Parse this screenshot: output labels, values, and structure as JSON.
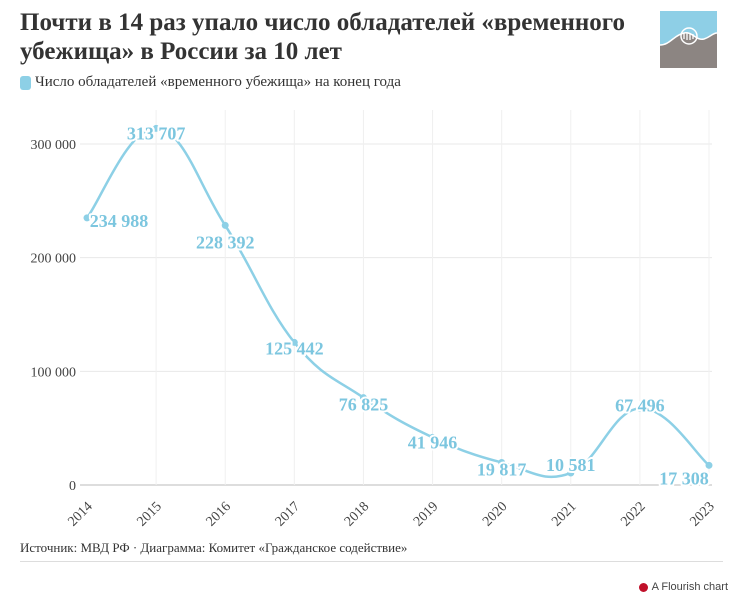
{
  "title": "Почти в 14 раз упало число обладателей «временного убежища» в России за 10 лет",
  "legend_label": "Число обладателей «временного убежища» на конец года",
  "source": "Источник: МВД РФ · Диаграмма: Комитет «Гражданское содействие»",
  "flourish_label": "A Flourish chart",
  "colors": {
    "series": "#8dd0e6",
    "label": "#7cc6df",
    "logo_top": "#8ecfe6",
    "logo_bottom": "#8c8582"
  },
  "chart_data": {
    "type": "line",
    "categories": [
      "2014",
      "2015",
      "2016",
      "2017",
      "2018",
      "2019",
      "2020",
      "2021",
      "2022",
      "2023"
    ],
    "series": [
      {
        "name": "Число обладателей «временного убежища» на конец года",
        "values": [
          234988,
          313707,
          228392,
          125442,
          76825,
          41946,
          19817,
          10581,
          67496,
          17308
        ]
      }
    ],
    "data_labels": [
      "234 988",
      "313 707",
      "228 392",
      "125 442",
      "76 825",
      "41 946",
      "19 817",
      "10 581",
      "67 496",
      "17 308"
    ],
    "y_ticks": [
      0,
      100000,
      200000,
      300000
    ],
    "y_tick_labels": [
      "0",
      "100 000",
      "200 000",
      "300 000"
    ],
    "ylim": [
      0,
      300000
    ],
    "grid": true,
    "curve": "smooth",
    "legend_position": "top-left"
  }
}
